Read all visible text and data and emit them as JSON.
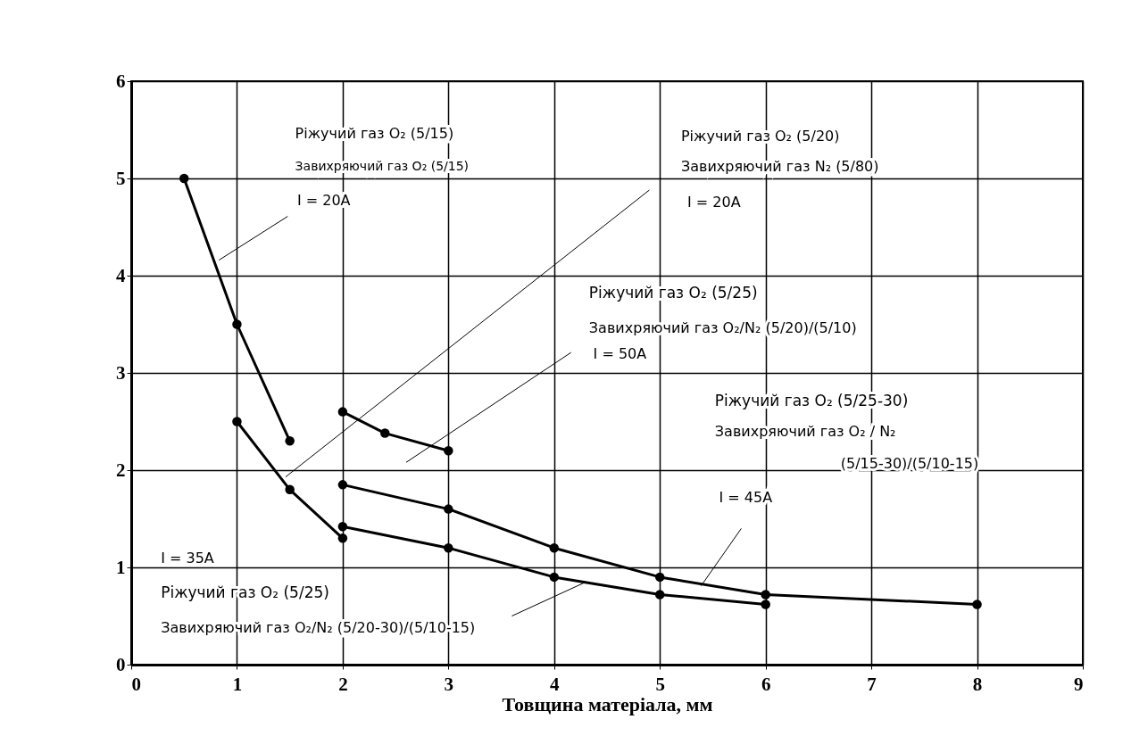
{
  "chart_data": {
    "type": "line",
    "xlabel": "Товщина матеріала, мм",
    "xlim": [
      0,
      9
    ],
    "xticks": [
      0,
      1,
      2,
      3,
      4,
      5,
      6,
      7,
      8,
      9
    ],
    "ylim": [
      0,
      6
    ],
    "yticks": [
      0,
      1,
      2,
      3,
      4,
      5,
      6
    ],
    "grid": true,
    "marker": "circle",
    "line_style": "solid",
    "series": [
      {
        "color": "#000000",
        "x": [
          0.5,
          1,
          1.5
        ],
        "values": [
          5,
          3.5,
          2.3
        ]
      },
      {
        "color": "#000000",
        "x": [
          1,
          1.5,
          2
        ],
        "values": [
          2.5,
          1.8,
          1.3
        ]
      },
      {
        "color": "#000000",
        "x": [
          2,
          2.4,
          3
        ],
        "values": [
          2.6,
          2.38,
          2.2
        ]
      },
      {
        "color": "#000000",
        "x": [
          2,
          3,
          4,
          5,
          6,
          8
        ],
        "values": [
          1.85,
          1.6,
          1.2,
          0.9,
          0.72,
          0.62
        ]
      },
      {
        "color": "#000000",
        "x": [
          2,
          3,
          4,
          5,
          6
        ],
        "values": [
          1.42,
          1.2,
          0.9,
          0.72,
          0.62
        ]
      }
    ],
    "annotations": [
      "Ріжучий газ O₂ (5/15)",
      "Завихряючий газ O₂ (5/15)",
      "I = 20A",
      "Ріжучий газ O₂ (5/20)",
      "Завихряючий газ N₂ (5/80)",
      "I = 20A",
      "Ріжучий газ O₂ (5/25)",
      "Завихряючий газ O₂/N₂ (5/20)/(5/10)",
      "I = 50A",
      "Ріжучий газ O₂ (5/25-30)",
      "Завихряючий газ O₂ / N₂",
      "(5/15-30)/(5/10-15)",
      "I = 45A",
      "I = 35A",
      "Ріжучий газ O₂ (5/25)",
      "Завихряючий газ O₂/N₂ (5/20-30)/(5/10-15)"
    ]
  }
}
